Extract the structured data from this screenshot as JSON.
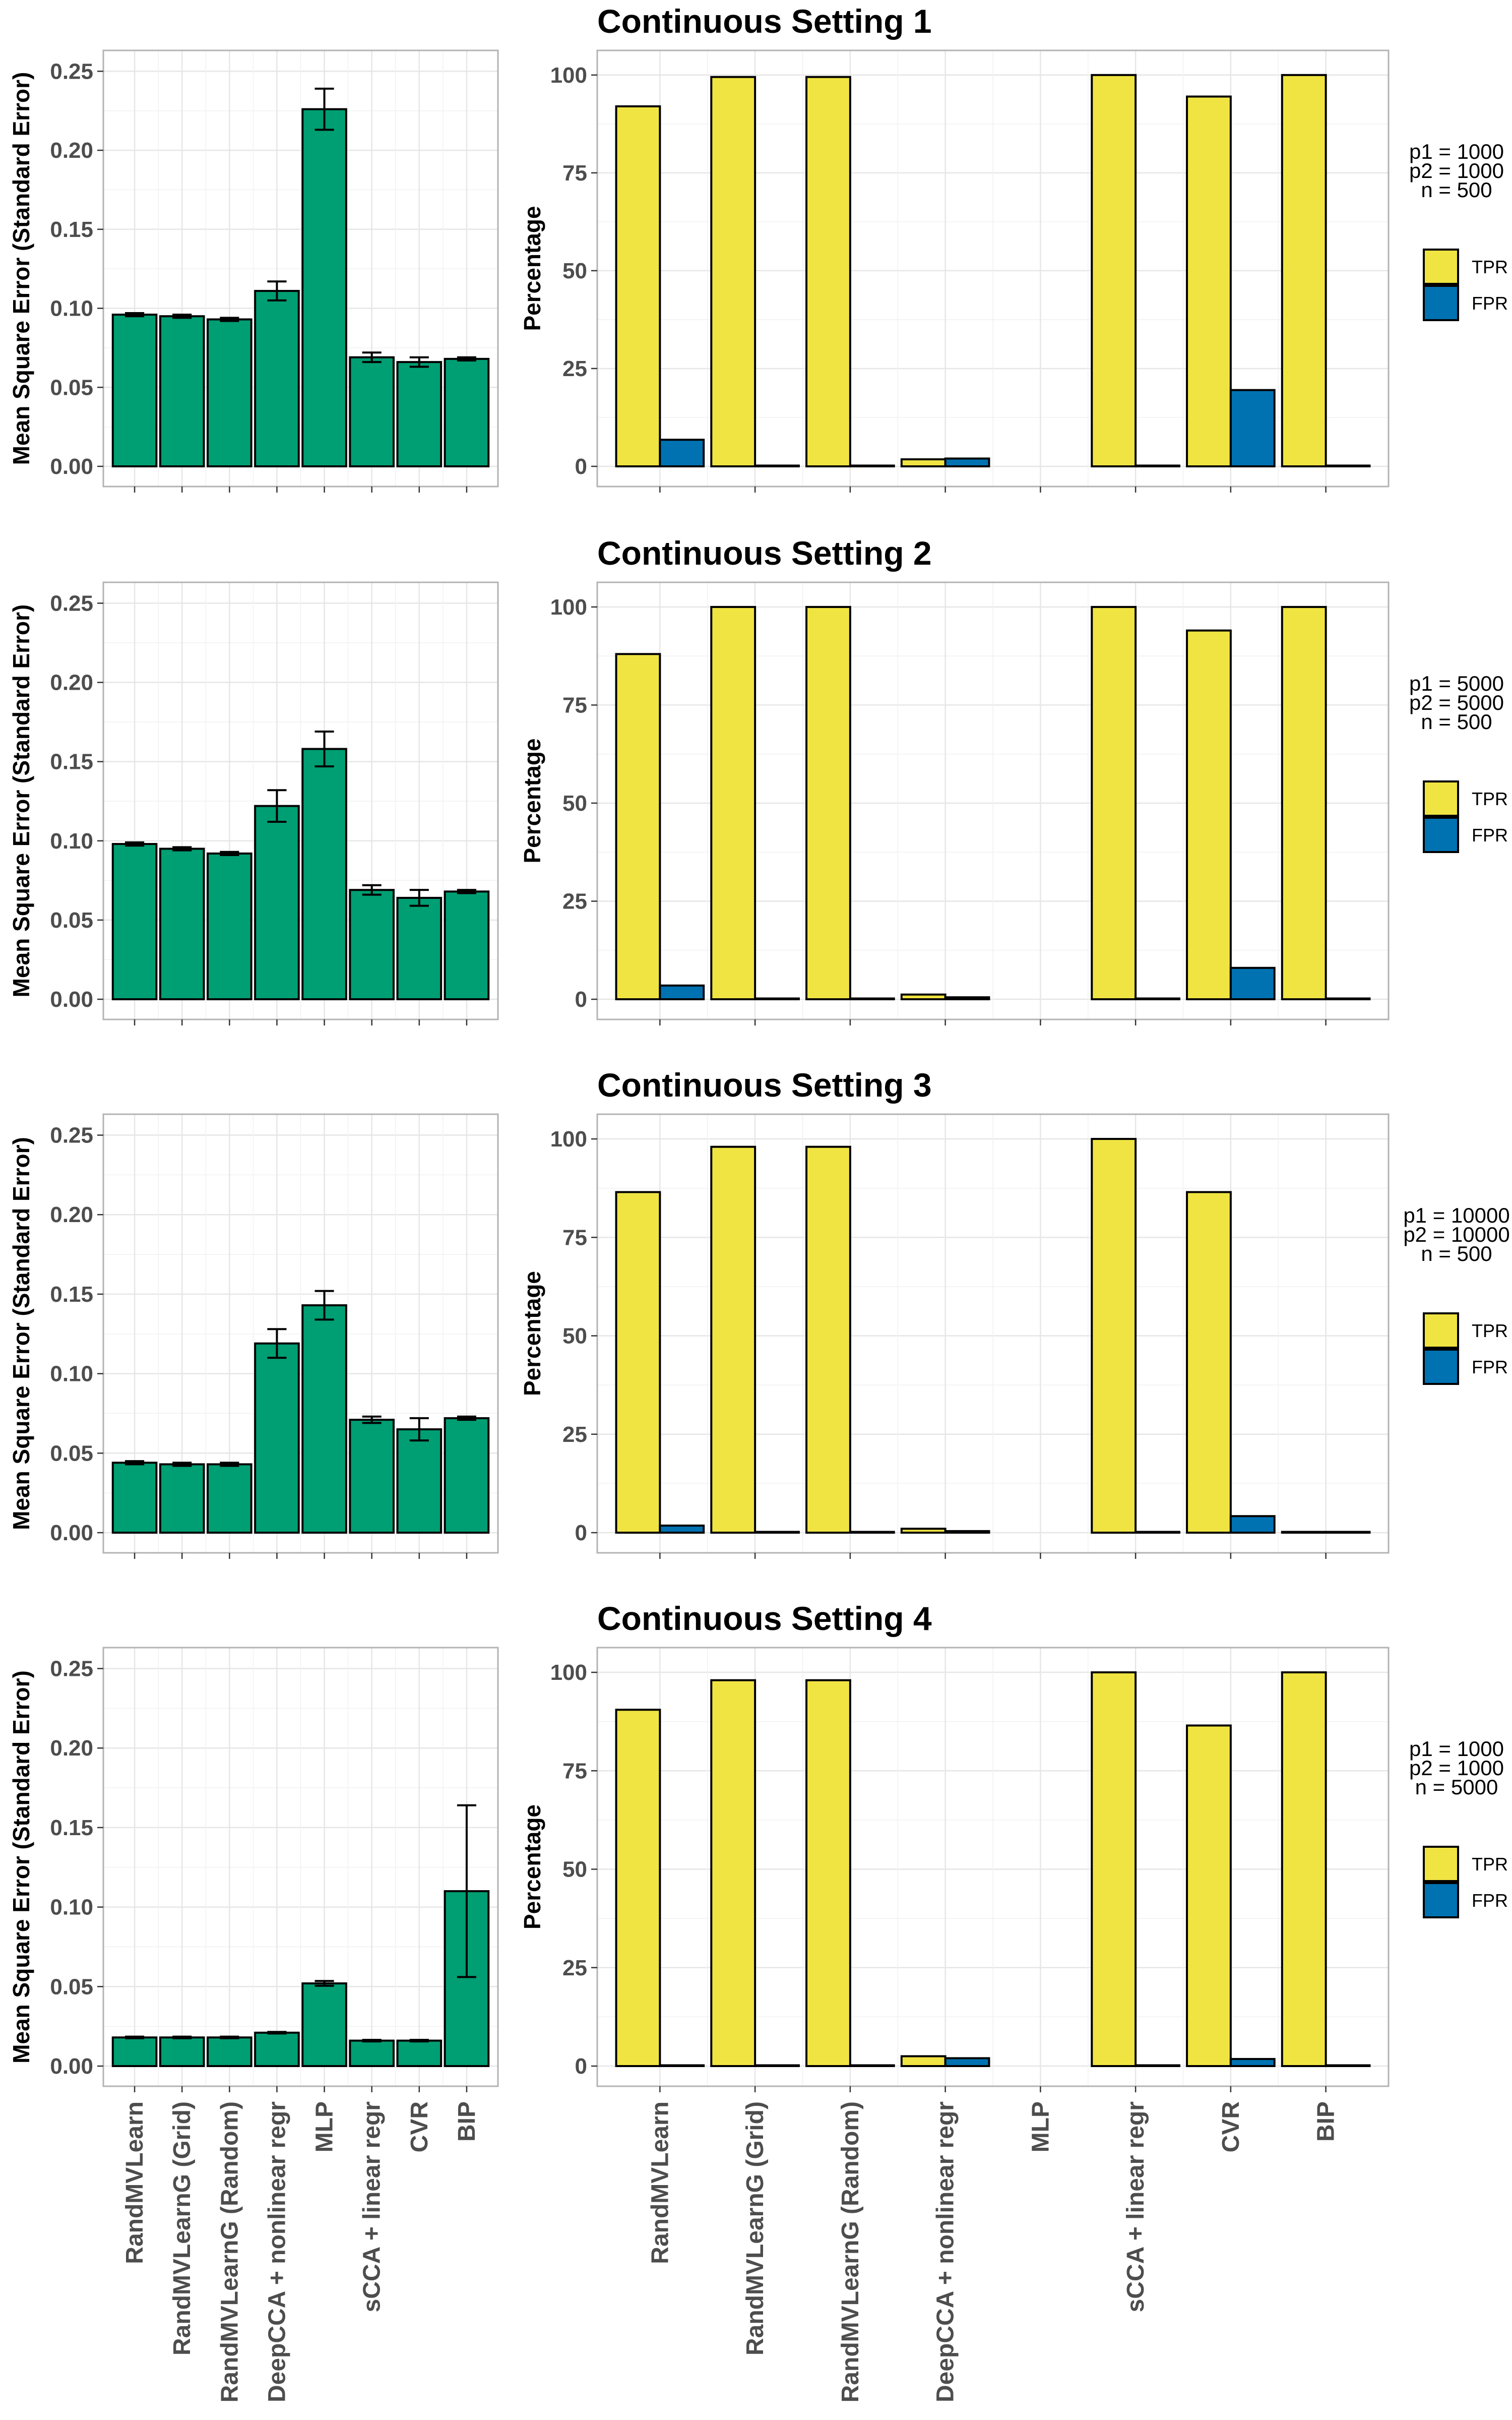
{
  "chart_data": {
    "type": "bar",
    "categories": [
      "RandMVLearn",
      "RandMVLearnG (Grid)",
      "RandMVLearnG (Random)",
      "DeepCCA + nonlinear regr",
      "MLP",
      "sCCA + linear regr",
      "CVR",
      "BIP"
    ],
    "mse_axis": {
      "ylabel": "Mean Square Error (Standard Error)",
      "ylim": [
        0,
        0.26
      ],
      "ticks": [
        "0.00",
        "0.05",
        "0.10",
        "0.15",
        "0.20",
        "0.25"
      ]
    },
    "pct_axis": {
      "ylabel": "Percentage",
      "ylim": [
        0,
        105
      ],
      "ticks": [
        "0",
        "25",
        "50",
        "75",
        "100"
      ]
    },
    "legend": [
      "TPR",
      "FPR"
    ],
    "colors": {
      "mse": "#009E73",
      "tpr": "#F0E442",
      "fpr": "#0072B2"
    },
    "settings": [
      {
        "title": "Continuous Setting 1",
        "params": [
          "p1 = 1000",
          "p2 = 1000",
          "n = 500"
        ],
        "mse": [
          0.096,
          0.095,
          0.093,
          0.111,
          0.226,
          0.069,
          0.066,
          0.068
        ],
        "mse_se": [
          0.001,
          0.001,
          0.001,
          0.006,
          0.013,
          0.003,
          0.003,
          0.001
        ],
        "tpr": [
          92,
          99.5,
          99.5,
          1.8,
          null,
          100,
          94.5,
          100
        ],
        "fpr": [
          6.8,
          0.2,
          0.2,
          2.0,
          null,
          0.2,
          19.5,
          0.2
        ]
      },
      {
        "title": "Continuous Setting 2",
        "params": [
          "p1 = 5000",
          "p2 = 5000",
          "n = 500"
        ],
        "mse": [
          0.098,
          0.095,
          0.092,
          0.122,
          0.158,
          0.069,
          0.064,
          0.068
        ],
        "mse_se": [
          0.001,
          0.001,
          0.001,
          0.01,
          0.011,
          0.003,
          0.005,
          0.001
        ],
        "tpr": [
          88,
          100,
          100,
          1.2,
          null,
          100,
          94,
          100
        ],
        "fpr": [
          3.5,
          0.2,
          0.2,
          0.5,
          null,
          0.2,
          8.0,
          0.2
        ]
      },
      {
        "title": "Continuous Setting 3",
        "params": [
          "p1 = 10000",
          "p2 = 10000",
          "n = 500"
        ],
        "mse": [
          0.044,
          0.043,
          0.043,
          0.119,
          0.143,
          0.071,
          0.065,
          0.072
        ],
        "mse_se": [
          0.001,
          0.001,
          0.001,
          0.009,
          0.009,
          0.002,
          0.007,
          0.001
        ],
        "tpr": [
          86.5,
          98,
          98,
          1.0,
          null,
          100,
          86.5,
          0.2
        ],
        "fpr": [
          1.8,
          0.2,
          0.2,
          0.4,
          null,
          0.2,
          4.2,
          0.2
        ]
      },
      {
        "title": "Continuous Setting 4",
        "params": [
          "p1 = 1000",
          "p2 = 1000",
          "n = 5000"
        ],
        "mse": [
          0.018,
          0.018,
          0.018,
          0.021,
          0.052,
          0.016,
          0.016,
          0.11
        ],
        "mse_se": [
          0.0005,
          0.0005,
          0.0005,
          0.0005,
          0.0015,
          0.0005,
          0.0005,
          0.054
        ],
        "tpr": [
          90.5,
          98,
          98,
          2.5,
          null,
          100,
          86.5,
          100
        ],
        "fpr": [
          0.2,
          0.2,
          0.2,
          2.0,
          null,
          0.2,
          1.8,
          0.2
        ]
      }
    ]
  }
}
